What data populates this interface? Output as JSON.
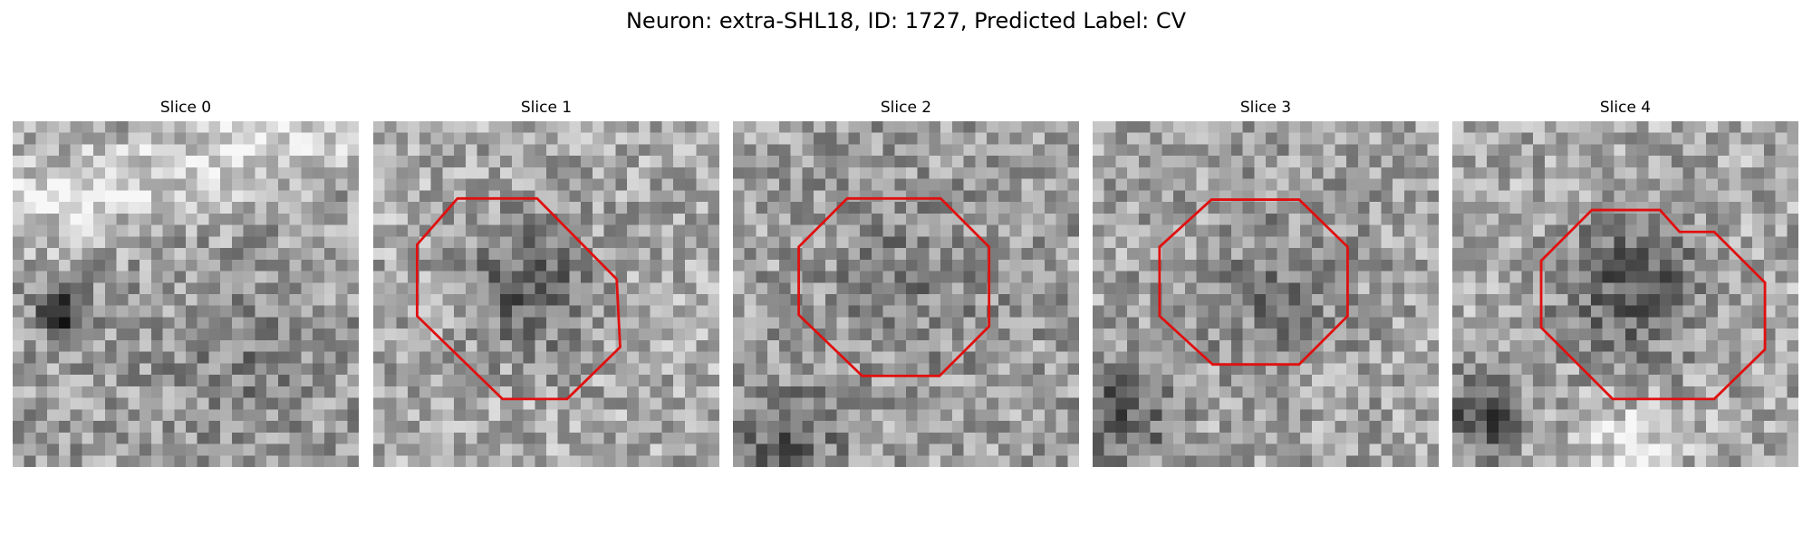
{
  "figure": {
    "title": "Neuron: extra-SHL18, ID: 1727, Predicted Label: CV"
  },
  "panels": [
    {
      "title": "Slice 0",
      "has_outline": false
    },
    {
      "title": "Slice 1",
      "has_outline": true
    },
    {
      "title": "Slice 2",
      "has_outline": true
    },
    {
      "title": "Slice 3",
      "has_outline": true
    },
    {
      "title": "Slice 4",
      "has_outline": true
    }
  ],
  "colors": {
    "outline": "#e01010",
    "colormap": "grayscale"
  }
}
